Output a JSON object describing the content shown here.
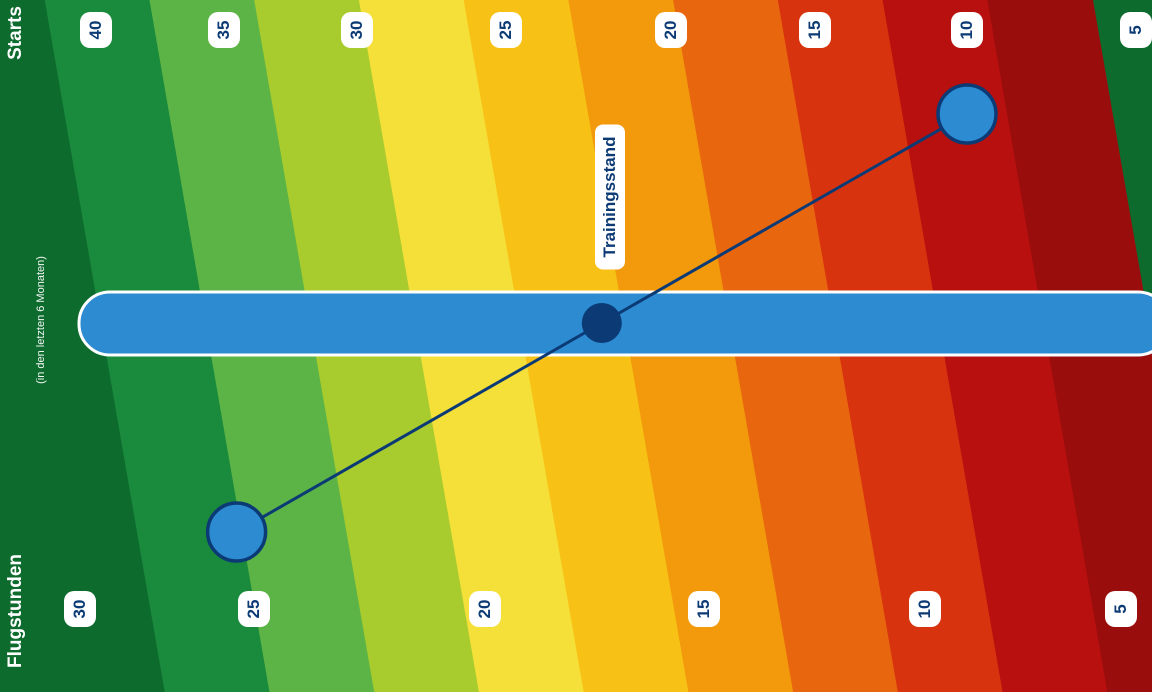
{
  "axes": {
    "starts": {
      "title": "Starts",
      "ticks": [
        "40",
        "35",
        "30",
        "25",
        "20",
        "15",
        "10",
        "5"
      ]
    },
    "flugstunden": {
      "title": "Flugstunden",
      "subtitle": "(in den letzten 6 Monaten)",
      "ticks": [
        "30",
        "25",
        "20",
        "15",
        "10",
        "5"
      ]
    }
  },
  "indicator": {
    "label": "Trainingsstand"
  },
  "reading": {
    "flugstunden": 25.5,
    "starts": 10
  },
  "colors": {
    "bands": [
      "#0d6b2e",
      "#1a8a3c",
      "#5cb346",
      "#a8cc2e",
      "#f5e03a",
      "#f7c215",
      "#f29a0c",
      "#e8660e",
      "#d8330f",
      "#b8100e",
      "#9a0d0d"
    ],
    "pill": "#2d8bd2",
    "marker": "#2d8bd2",
    "line": "#0b3a75",
    "text_dark": "#0b3a75"
  }
}
